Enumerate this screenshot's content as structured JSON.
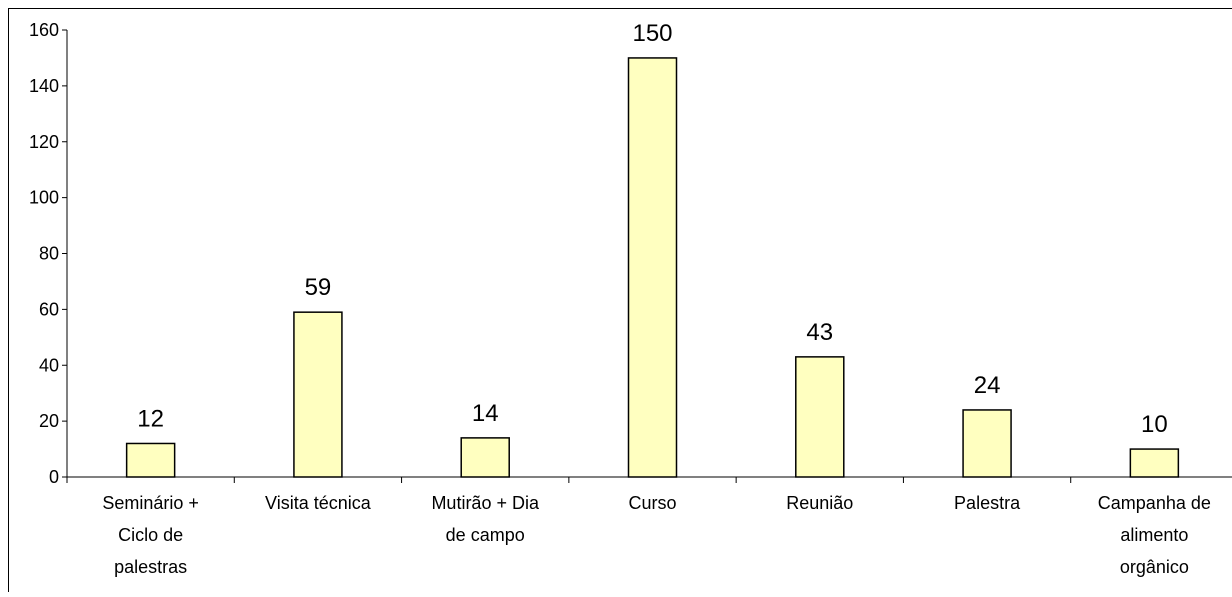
{
  "chart_data": {
    "type": "bar",
    "title": "",
    "xlabel": "",
    "ylabel": "",
    "ylim": [
      0,
      160
    ],
    "yticks": [
      0,
      20,
      40,
      60,
      80,
      100,
      120,
      140,
      160
    ],
    "categories": [
      [
        "Seminário +",
        "Ciclo de",
        "palestras"
      ],
      [
        "Visita técnica"
      ],
      [
        "Mutirão + Dia",
        "de campo"
      ],
      [
        "Curso"
      ],
      [
        "Reunião"
      ],
      [
        "Palestra"
      ],
      [
        "Campanha de",
        "alimento",
        "orgânico"
      ]
    ],
    "values": [
      12,
      59,
      14,
      150,
      43,
      24,
      10
    ],
    "data_labels": [
      "12",
      "59",
      "14",
      "150",
      "43",
      "24",
      "10"
    ],
    "grid": false,
    "legend": "none",
    "bar_color": "#ffffc0",
    "bar_edge_color": "#000000"
  }
}
